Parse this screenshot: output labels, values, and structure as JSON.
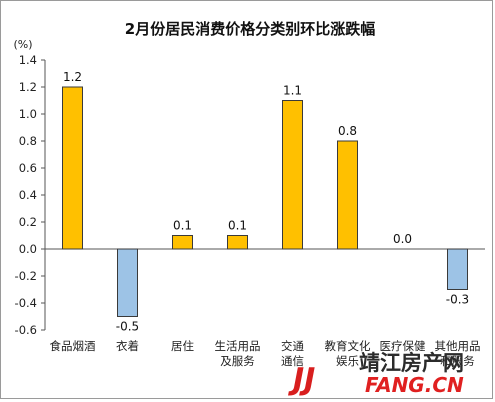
{
  "chart_data": {
    "type": "bar",
    "title": "2月份居民消费价格分类别环比涨跌幅",
    "unit_label": "(%)",
    "categories": [
      [
        "食品烟酒"
      ],
      [
        "衣着"
      ],
      [
        "居住"
      ],
      [
        "生活用品",
        "及服务"
      ],
      [
        "交通",
        "通信"
      ],
      [
        "教育文化",
        "娱乐"
      ],
      [
        "医疗保健"
      ],
      [
        "其他用品",
        "和服务"
      ]
    ],
    "values": [
      1.2,
      -0.5,
      0.1,
      0.1,
      1.1,
      0.8,
      0.0,
      -0.3
    ],
    "value_labels": [
      "1.2",
      "-0.5",
      "0.1",
      "0.1",
      "1.1",
      "0.8",
      "0.0",
      "-0.3"
    ],
    "ylim": [
      -0.6,
      1.4
    ],
    "yticks": [
      "1.4",
      "1.2",
      "1.0",
      "0.8",
      "0.6",
      "0.4",
      "0.2",
      "0.0",
      "-0.2",
      "-0.4",
      "-0.6"
    ],
    "grid": false,
    "colors": {
      "positive": "#FFC000",
      "negative": "#9DC3E6",
      "outline": "#3a3a3a"
    }
  },
  "watermark": {
    "mark": "JJ",
    "name": "靖江房产网",
    "url": "FANG.CN"
  }
}
